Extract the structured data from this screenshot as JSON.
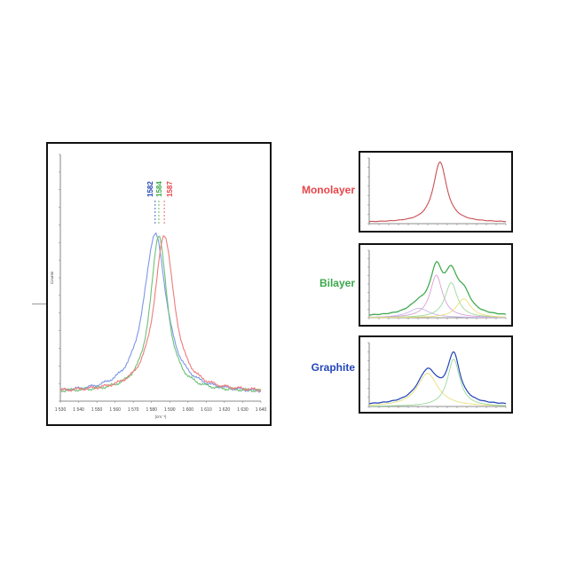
{
  "colors": {
    "monolayer": "#e8454a",
    "bilayer": "#3aa84a",
    "graphite": "#2446b8",
    "main_blue": "#7d97e8",
    "main_green": "#6fc07a",
    "main_red": "#ef7b7b",
    "fit_pink": "#d9a0d8",
    "fit_green": "#9cd89c",
    "fit_yellow": "#e8e07a",
    "fit_lavender": "#c7b8ea"
  },
  "labels": {
    "monolayer": "Monolayer",
    "bilayer": "Bilayer",
    "graphite": "Graphite"
  },
  "chart_data": [
    {
      "id": "main",
      "type": "line",
      "xlim": [
        1530,
        1640
      ],
      "ylim": [
        0,
        1900
      ],
      "xticks": [
        "1 530",
        "1 540",
        "1 550",
        "1 560",
        "1 570",
        "1 580",
        "1 590",
        "1 600",
        "1 610",
        "1 620",
        "1 630",
        "1 640"
      ],
      "xlabel": "(cm⁻¹)",
      "ylabel": "Counts",
      "peak_annotations": [
        {
          "text": "1582",
          "x": 1582,
          "color": "#2446b8"
        },
        {
          "text": "1584",
          "x": 1584,
          "color": "#3aa84a"
        },
        {
          "text": "1587",
          "x": 1587,
          "color": "#e8454a"
        }
      ],
      "series": [
        {
          "center": 1582,
          "height": 1230,
          "width": 7.5,
          "base": 60,
          "color": "#7d97e8"
        },
        {
          "center": 1584,
          "height": 1210,
          "width": 5.5,
          "base": 70,
          "color": "#6fc07a"
        },
        {
          "center": 1587,
          "height": 1210,
          "width": 6.5,
          "base": 70,
          "color": "#ef7b7b"
        }
      ]
    },
    {
      "id": "monolayer",
      "type": "line",
      "xlim": [
        1530,
        1640
      ],
      "ylim": [
        0,
        1
      ],
      "series": [
        {
          "center": 1587,
          "height": 0.92,
          "width": 6.5,
          "base": 0.02,
          "color": "#e8454a"
        }
      ]
    },
    {
      "id": "bilayer",
      "type": "line",
      "xlim": [
        1530,
        1640
      ],
      "ylim": [
        0,
        1
      ],
      "fit_components": [
        {
          "center": 1570,
          "height": 0.14,
          "width": 10,
          "color": "#c7b8ea"
        },
        {
          "center": 1584,
          "height": 0.63,
          "width": 6,
          "color": "#d9a0d8"
        },
        {
          "center": 1596,
          "height": 0.52,
          "width": 6,
          "color": "#9cd89c"
        },
        {
          "center": 1606,
          "height": 0.28,
          "width": 7,
          "color": "#e8e07a"
        }
      ],
      "total_color": "#3aa84a"
    },
    {
      "id": "graphite",
      "type": "line",
      "xlim": [
        1530,
        1640
      ],
      "ylim": [
        0,
        1
      ],
      "fit_components": [
        {
          "center": 1577,
          "height": 0.52,
          "width": 10,
          "color": "#e8e07a"
        },
        {
          "center": 1598,
          "height": 0.74,
          "width": 6,
          "color": "#9cd89c"
        }
      ],
      "total_color": "#2446b8"
    }
  ]
}
